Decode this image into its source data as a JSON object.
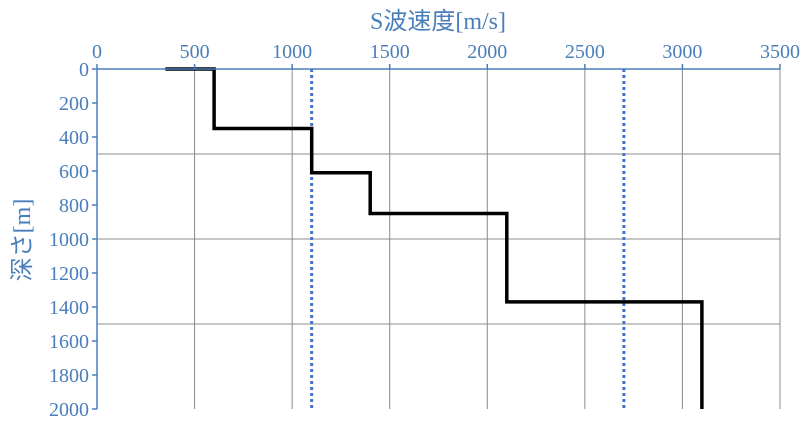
{
  "chart_data": {
    "type": "line",
    "xlabel": "S波速度[m/s]",
    "ylabel": "深さ[m]",
    "xlim": [
      0,
      3500
    ],
    "ylim": [
      0,
      2000
    ],
    "y_inverted": true,
    "x_axis_position": "top",
    "x_ticks": [
      0,
      500,
      1000,
      1500,
      2000,
      2500,
      3000,
      3500
    ],
    "y_ticks": [
      0,
      200,
      400,
      600,
      800,
      1000,
      1200,
      1400,
      1600,
      1800,
      2000
    ],
    "grid": "vertical lines every 500; horizontal lines every 500",
    "series": [
      {
        "style": "solid",
        "color": "#000000",
        "x": [
          350,
          600,
          600,
          1100,
          1100,
          1400,
          1400,
          2100,
          2100,
          3100,
          3100
        ],
        "y": [
          0,
          0,
          350,
          350,
          610,
          610,
          850,
          850,
          1370,
          1370,
          2000
        ]
      }
    ],
    "reference_lines": [
      {
        "x": 1100,
        "style": "dotted",
        "color": "#4472c4"
      },
      {
        "x": 2700,
        "style": "dotted",
        "color": "#4472c4"
      }
    ],
    "colors": {
      "text": "#4a7ebb",
      "axis": "#4a7ebb",
      "grid": "#8c8c8c",
      "profile": "#000000",
      "reference": "#4472c4"
    }
  }
}
